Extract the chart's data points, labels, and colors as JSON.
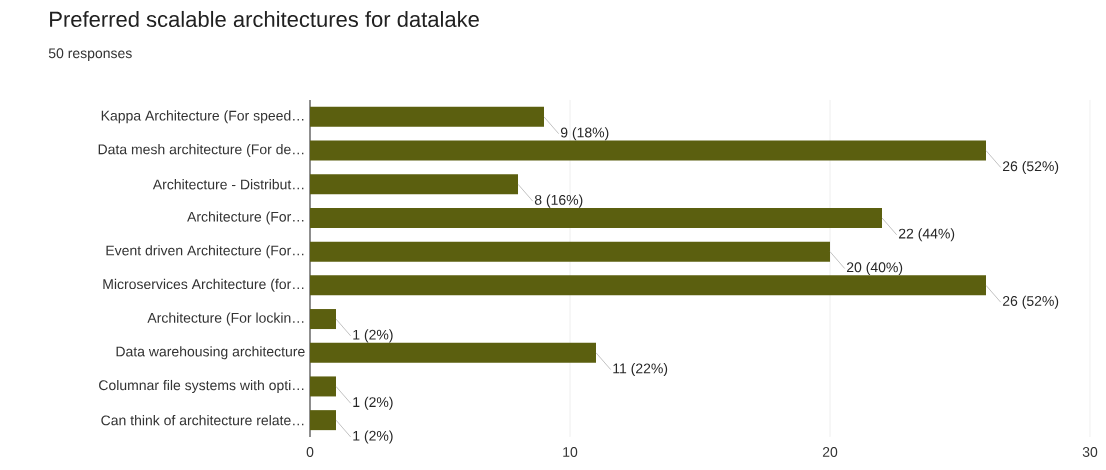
{
  "chart_data": {
    "type": "bar",
    "orientation": "horizontal",
    "title": "Preferred scalable architectures for datalake",
    "subtitle": "50 responses",
    "categories": [
      "Kappa Architecture (For speed…",
      "Data mesh architecture (For de…",
      "Architecture - Distribut…",
      "Architecture (For…",
      "Event driven Architecture (For…",
      "Microservices Architecture (for…",
      "Architecture (For lockin…",
      "Data warehousing architecture",
      "Columnar file systems with opti…",
      "Can think of architecture relate…"
    ],
    "values": [
      9,
      26,
      8,
      22,
      20,
      26,
      1,
      11,
      1,
      1
    ],
    "value_labels": [
      "9 (18%)",
      "26 (52%)",
      "8 (16%)",
      "22 (44%)",
      "20 (40%)",
      "26 (52%)",
      "1 (2%)",
      "11 (22%)",
      "1 (2%)",
      "1 (2%)"
    ],
    "color": "#5b5f0f",
    "xlim": [
      0,
      30
    ],
    "xticks": [
      0,
      10,
      20,
      30
    ],
    "grid": "x"
  }
}
